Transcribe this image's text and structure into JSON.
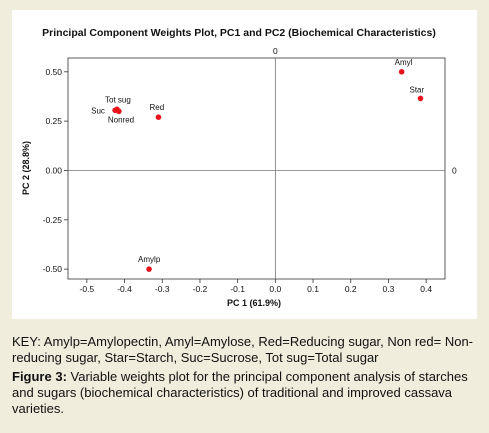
{
  "chart_data": {
    "type": "scatter",
    "title": "Principal Component Weights Plot, PC1 and PC2 (Biochemical Characteristics)",
    "xlabel": "PC 1 (61.9%)",
    "ylabel": "PC 2 (28.8%)",
    "xlim": [
      -0.55,
      0.45
    ],
    "ylim": [
      -0.55,
      0.57
    ],
    "x_ticks": [
      -0.5,
      -0.4,
      -0.3,
      -0.2,
      -0.1,
      0.0,
      0.1,
      0.2,
      0.3,
      0.4
    ],
    "y_ticks": [
      -0.5,
      -0.25,
      0.0,
      0.25,
      0.5
    ],
    "x_tick_labels": [
      "-0.5",
      "-0.4",
      "-0.3",
      "-0.2",
      "-0.1",
      "0.0",
      "0.1",
      "0.2",
      "0.3",
      "0.4"
    ],
    "y_tick_labels": [
      "-0.50",
      "-0.25",
      "0.00",
      "0.25",
      "0.50"
    ],
    "reference_line_labels": [
      "0",
      "0"
    ],
    "points": [
      {
        "label": "Amyl",
        "x": 0.335,
        "y": 0.5
      },
      {
        "label": "Star",
        "x": 0.385,
        "y": 0.365
      },
      {
        "label": "Red",
        "x": -0.31,
        "y": 0.27
      },
      {
        "label": "Tot sug",
        "x": -0.42,
        "y": 0.31
      },
      {
        "label": "Suc",
        "x": -0.425,
        "y": 0.305
      },
      {
        "label": "Nonred",
        "x": -0.415,
        "y": 0.3
      },
      {
        "label": "Amylp",
        "x": -0.335,
        "y": -0.5
      }
    ],
    "point_color": "#e8141c",
    "grid": false
  },
  "key": "KEY: Amylp=Amylopectin, Amyl=Amylose, Red=Reducing sugar, Non red= Non-reducing sugar, Star=Starch, Suc=Sucrose, Tot sug=Total sugar",
  "caption": {
    "label": "Figure 3:",
    "text": " Variable weights plot for the principal component analysis of starches and sugars (biochemical characteristics) of traditional and improved cassava varieties."
  }
}
